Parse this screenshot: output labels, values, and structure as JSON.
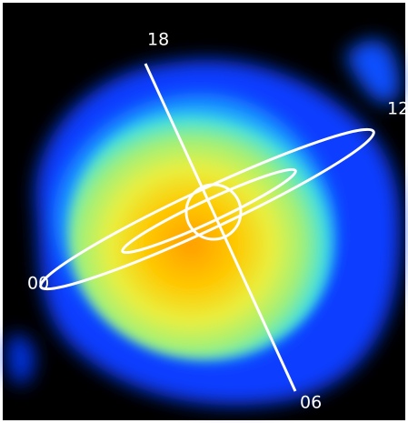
{
  "labels": {
    "top": "18",
    "right": "12",
    "left": "00",
    "bottom": "06"
  }
}
